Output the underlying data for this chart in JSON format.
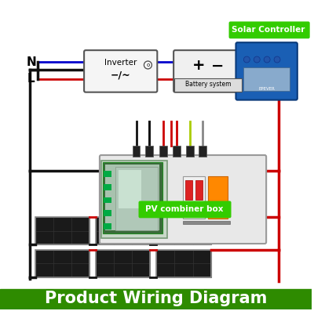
{
  "title": "Product Wiring Diagram",
  "title_bg": "#2e8b00",
  "title_color": "white",
  "bg_color": "white",
  "pv_label": "PV combiner box",
  "solar_controller_label": "Solar Controller",
  "inverter_label": "Inverter",
  "battery_label": "Battery system",
  "L_label": "L",
  "N_label": "N",
  "panel_color": "#1a1a1a",
  "panel_grid_color": "#333333",
  "wire_black": "#111111",
  "wire_red": "#cc0000",
  "wire_blue": "#0000cc",
  "green_label_bg": "#33cc00",
  "green_label_color": "white",
  "box_border": "#aaaaaa",
  "inverter_bg": "#f5f5f5",
  "battery_bg": "#f0f0f0",
  "controller_blue": "#1a5fb4"
}
